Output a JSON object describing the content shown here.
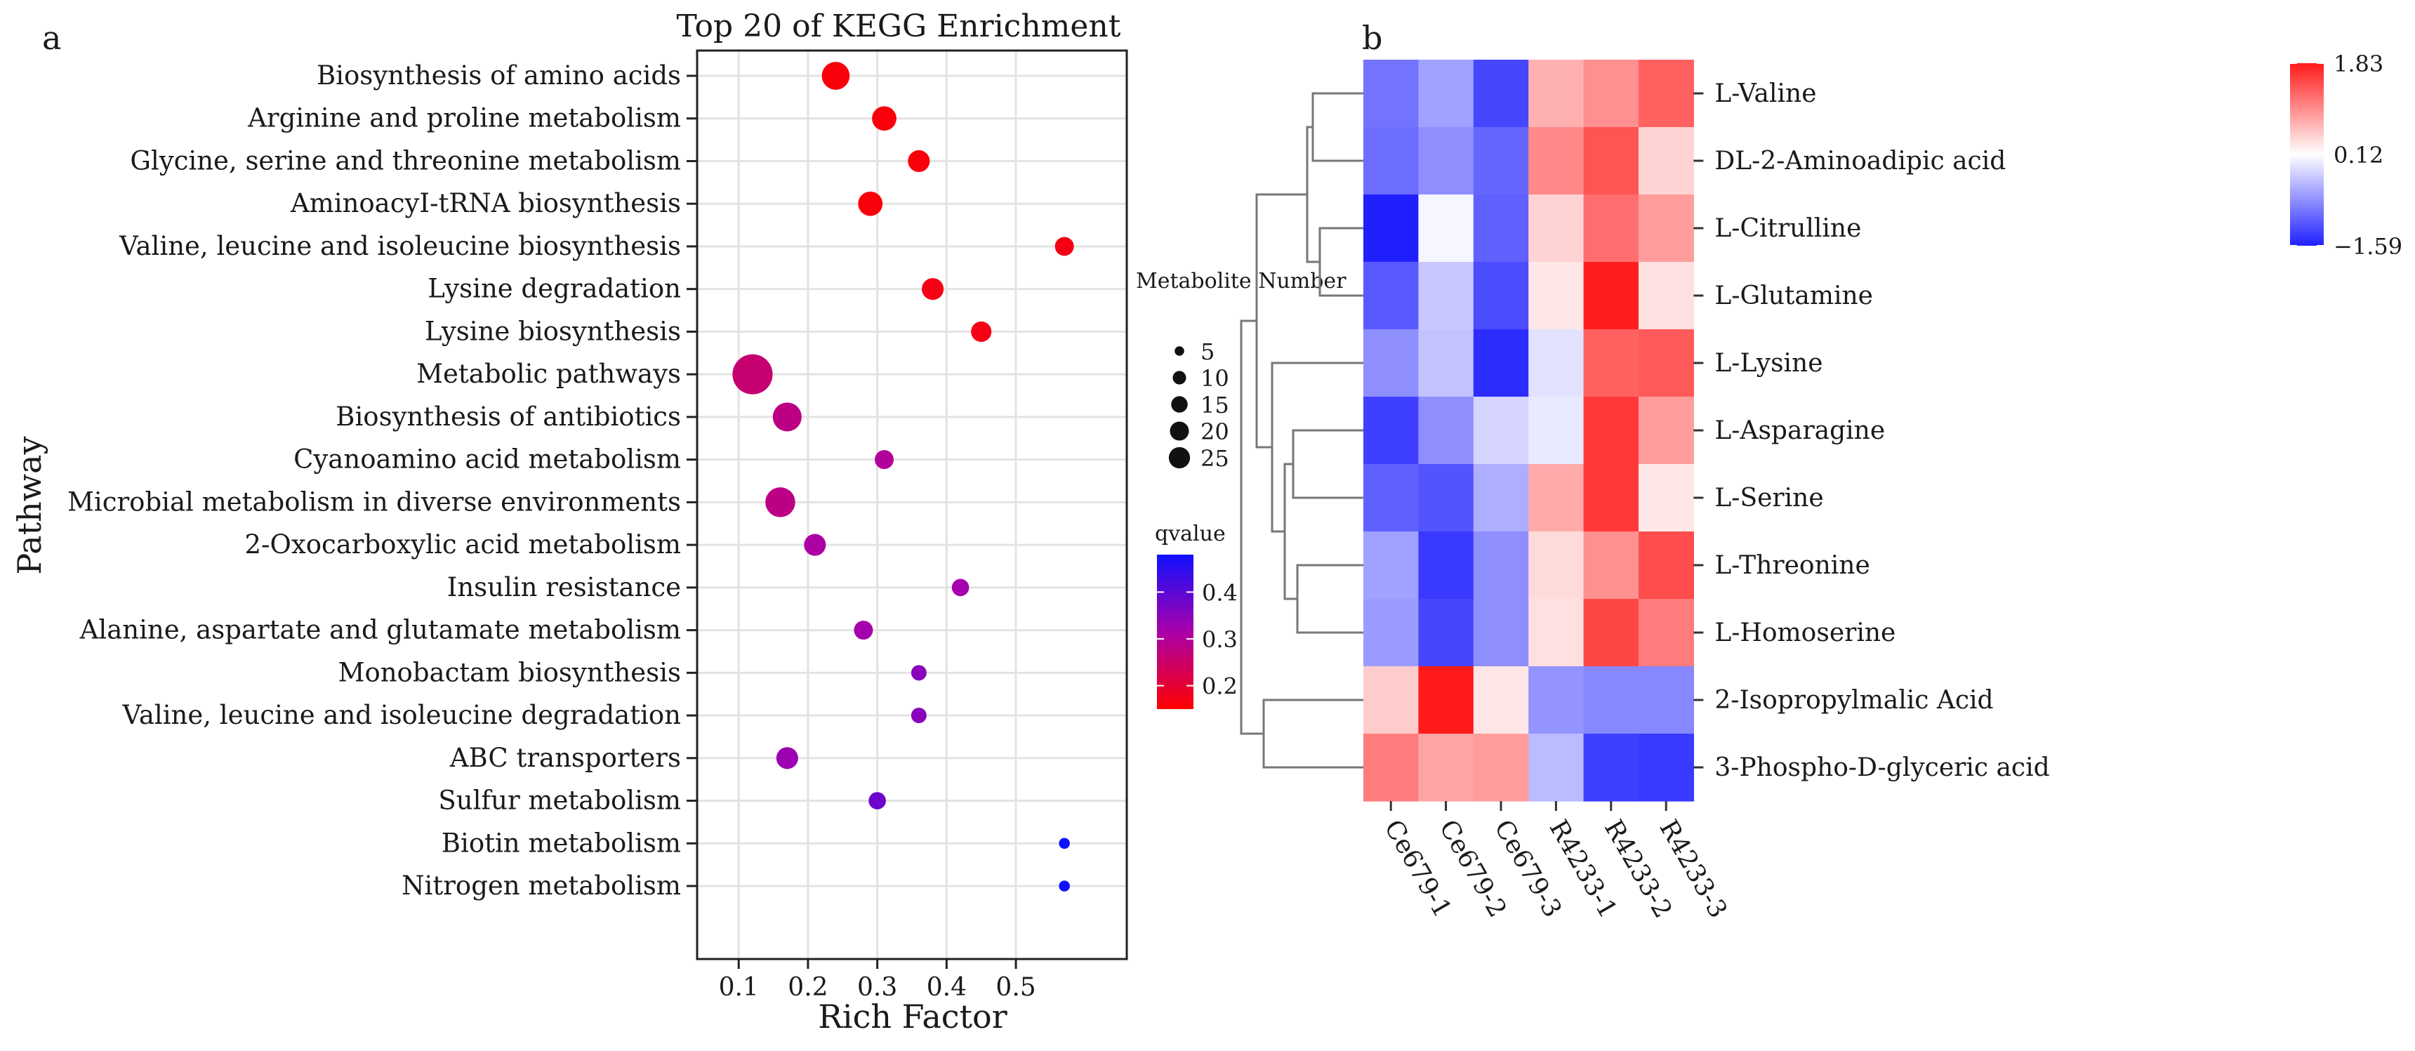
{
  "panel_a_label": "a",
  "panel_b_label": "b",
  "chart_data": [
    {
      "type": "scatter",
      "title": "Top 20 of  KEGG Enrichment",
      "xlabel": "Rich Factor",
      "ylabel": "Pathway",
      "xlim": [
        0.04,
        0.66
      ],
      "xticks": [
        0.1,
        0.2,
        0.3,
        0.4,
        0.5
      ],
      "xtick_labels": [
        "0.1",
        "0.2",
        "0.3",
        "0.4",
        "0.5"
      ],
      "grid": true,
      "categories": [
        "Biosynthesis of amino acids",
        "Arginine and proline metabolism",
        "Glycine, serine and threonine metabolism",
        "AminoacyI-tRNA biosynthesis",
        "Valine, leucine and isoleucine biosynthesis",
        "Lysine degradation",
        "Lysine biosynthesis",
        "Metabolic pathways",
        "Biosynthesis of antibiotics",
        "Cyanoamino acid metabolism",
        "Microbial metabolism in diverse environments",
        "2-Oxocarboxylic acid metabolism",
        "Insulin resistance",
        "Alanine, aspartate and glutamate metabolism",
        "Monobactam biosynthesis",
        "Valine, leucine and isoleucine degradation",
        "ABC transporters",
        "Sulfur metabolism",
        "Biotin metabolism",
        "Nitrogen metabolism"
      ],
      "rich_factor": [
        0.24,
        0.31,
        0.36,
        0.29,
        0.57,
        0.38,
        0.45,
        0.12,
        0.17,
        0.31,
        0.16,
        0.21,
        0.42,
        0.28,
        0.36,
        0.36,
        0.17,
        0.3,
        0.57,
        0.57
      ],
      "metabolite_number": [
        13,
        10,
        8,
        10,
        6,
        8,
        7,
        27,
        14,
        6,
        15,
        8,
        5,
        6,
        4,
        4,
        8,
        5,
        2,
        2
      ],
      "qvalue": [
        0.16,
        0.16,
        0.16,
        0.16,
        0.17,
        0.17,
        0.17,
        0.26,
        0.28,
        0.3,
        0.28,
        0.31,
        0.32,
        0.32,
        0.35,
        0.35,
        0.33,
        0.38,
        0.48,
        0.48
      ],
      "size_legend": {
        "title": "Metabolite Number",
        "values": [
          5,
          10,
          15,
          20,
          25
        ],
        "labels": [
          "5",
          "10",
          "15",
          "20",
          "25"
        ]
      },
      "color_legend": {
        "title": "qvalue",
        "range": [
          0.15,
          0.48
        ],
        "ticks": [
          0.2,
          0.3,
          0.4
        ],
        "tick_labels": [
          "0.2",
          "0.3",
          "0.4"
        ],
        "low_color": "#ff0000",
        "mid_color": "#aa00aa",
        "high_color": "#1010ff"
      }
    },
    {
      "type": "heatmap",
      "rows": [
        "L-Valine",
        "DL-2-Aminoadipic acid",
        "L-Citrulline",
        "L-Glutamine",
        "L-Lysine",
        "L-Asparagine",
        "L-Serine",
        "L-Threonine",
        "L-Homoserine",
        "2-Isopropylmalic Acid",
        "3-Phospho-D-glyceric acid"
      ],
      "columns": [
        "Ce679-1",
        "Ce679-2",
        "Ce679-3",
        "R4233-1",
        "R4233-2",
        "R4233-3"
      ],
      "values": [
        [
          -0.95,
          -0.6,
          -1.3,
          0.7,
          0.95,
          1.3
        ],
        [
          -1.0,
          -0.75,
          -1.05,
          1.0,
          1.4,
          0.45
        ],
        [
          -1.59,
          0.05,
          -1.1,
          0.45,
          1.2,
          0.85
        ],
        [
          -1.15,
          -0.3,
          -1.25,
          0.3,
          1.8,
          0.35
        ],
        [
          -0.75,
          -0.35,
          -1.5,
          -0.1,
          1.3,
          1.35
        ],
        [
          -1.35,
          -0.75,
          -0.2,
          -0.05,
          1.6,
          0.85
        ],
        [
          -1.1,
          -1.2,
          -0.5,
          0.75,
          1.6,
          0.3
        ],
        [
          -0.6,
          -1.4,
          -0.75,
          0.4,
          0.95,
          1.45
        ],
        [
          -0.65,
          -1.3,
          -0.75,
          0.35,
          1.5,
          1.1
        ],
        [
          0.5,
          1.83,
          0.3,
          -0.7,
          -0.8,
          -0.8
        ],
        [
          1.1,
          0.8,
          0.85,
          -0.4,
          -1.35,
          -1.4
        ]
      ],
      "color_scale": {
        "min": -1.59,
        "mid": 0.12,
        "max": 1.83,
        "tick_labels": [
          "1.83",
          "0.12",
          "−1.59"
        ],
        "low_color": "#2020ff",
        "mid_color": "#ffffff",
        "high_color": "#ff1a1a"
      },
      "row_dendrogram": true
    }
  ]
}
